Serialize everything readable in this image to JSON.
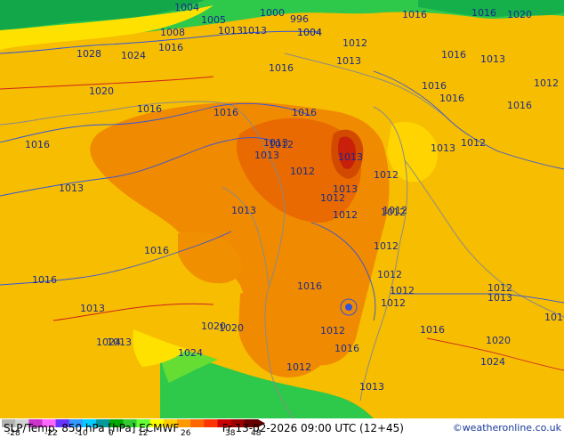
{
  "title": {
    "left": "SLP/Temp. 850 hPa [hPa] ECMWF",
    "right": "Fr 13-02-2026 09:00 UTC (12+45)"
  },
  "credit": "©weatheronline.co.uk",
  "legend": {
    "ticks": [
      "-28",
      "-22",
      "-10",
      "0",
      "12",
      "26",
      "38",
      "48"
    ],
    "colors": [
      "#b4b4b4",
      "#d2d2d2",
      "#cc33cc",
      "#ff66ff",
      "#6633ff",
      "#3399ff",
      "#00ccff",
      "#009999",
      "#00aa00",
      "#33cc33",
      "#66ff33",
      "#ffff00",
      "#ffcc00",
      "#ff9900",
      "#ff6600",
      "#ff3300",
      "#cc0000",
      "#990000",
      "#660000"
    ]
  },
  "palette": {
    "land_warm": "#f5a800",
    "land_hot": "#f08a00",
    "land_very_hot": "#e86a00",
    "sea_yellow": "#f7bd00",
    "cool_green": "#33cc33",
    "cold_green": "#11b84a",
    "isobar_blue": "#3355dd",
    "isobar_red": "#cc2222",
    "coast": "#8a8a8a"
  },
  "isobar_labels": [
    "1004",
    "1000",
    "996",
    "1005",
    "1004",
    "1016",
    "1016",
    "1020",
    "1013",
    "1013",
    "1004",
    "1008",
    "1012",
    "1013",
    "1016",
    "1016",
    "1028",
    "1024",
    "1016",
    "1016",
    "1013",
    "1016",
    "1013",
    "1020",
    "1016",
    "1016",
    "1016",
    "1013",
    "1016",
    "1012",
    "1016",
    "1013",
    "1012",
    "1013",
    "1012",
    "1012",
    "1016",
    "1013",
    "1012",
    "1012",
    "1013",
    "1012",
    "1012",
    "1012",
    "1012",
    "1012",
    "1013",
    "1012",
    "1016",
    "1013",
    "1013",
    "1016",
    "1020",
    "1016",
    "1020",
    "1024",
    "1024",
    "1012",
    "1013",
    "1016",
    "1020",
    "1024",
    "1016",
    "1012",
    "1013",
    "1012",
    "1012"
  ]
}
